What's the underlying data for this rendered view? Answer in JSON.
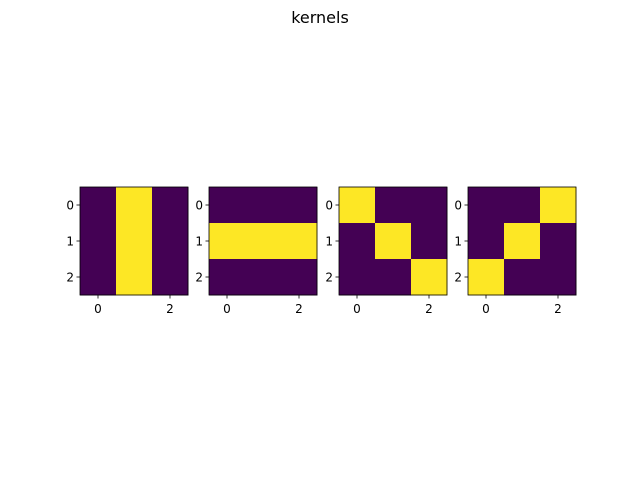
{
  "figure": {
    "title": "kernels"
  },
  "colors": {
    "low": "#440154",
    "high": "#fde725",
    "axis": "#000000",
    "background": "#ffffff"
  },
  "chart_data": [
    {
      "type": "heatmap",
      "colormap": "viridis",
      "matrix": [
        [
          0,
          1,
          0
        ],
        [
          0,
          1,
          0
        ],
        [
          0,
          1,
          0
        ]
      ],
      "x_ticks": [
        "0",
        "2"
      ],
      "y_ticks": [
        "0",
        "1",
        "2"
      ]
    },
    {
      "type": "heatmap",
      "colormap": "viridis",
      "matrix": [
        [
          0,
          0,
          0
        ],
        [
          1,
          1,
          1
        ],
        [
          0,
          0,
          0
        ]
      ],
      "x_ticks": [
        "0",
        "2"
      ],
      "y_ticks": [
        "0",
        "1",
        "2"
      ]
    },
    {
      "type": "heatmap",
      "colormap": "viridis",
      "matrix": [
        [
          1,
          0,
          0
        ],
        [
          0,
          1,
          0
        ],
        [
          0,
          0,
          1
        ]
      ],
      "x_ticks": [
        "0",
        "2"
      ],
      "y_ticks": [
        "0",
        "1",
        "2"
      ]
    },
    {
      "type": "heatmap",
      "colormap": "viridis",
      "matrix": [
        [
          0,
          0,
          1
        ],
        [
          0,
          1,
          0
        ],
        [
          1,
          0,
          0
        ]
      ],
      "x_ticks": [
        "0",
        "2"
      ],
      "y_ticks": [
        "0",
        "1",
        "2"
      ]
    }
  ]
}
